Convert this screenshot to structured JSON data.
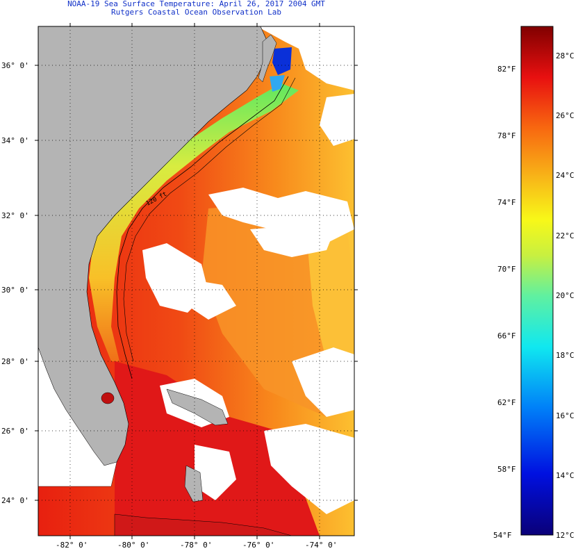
{
  "title_line1": "NOAA-19 Sea Surface Temperature:  April 26, 2017 2004 GMT",
  "title_line2": "Rutgers Coastal Ocean Observation Lab",
  "map": {
    "lat_labels": [
      "36° 0'",
      "34° 0'",
      "32° 0'",
      "30° 0'",
      "28° 0'",
      "26° 0'",
      "24° 0'"
    ],
    "lon_labels": [
      "-82° 0'",
      "-80° 0'",
      "-78° 0'",
      "-76° 0'",
      "-74° 0'"
    ],
    "isobath_label": "120 ft",
    "colors": {
      "land": "#b4b4b4",
      "cloud": "#ffffff",
      "ocean_warm": "#f03010",
      "ocean_mid": "#f8a020",
      "coastal_cool": "#e8e840",
      "cold_inlet": "#0a30d8"
    }
  },
  "colorbar": {
    "fahrenheit_labels": [
      "82°F",
      "78°F",
      "74°F",
      "70°F",
      "66°F",
      "62°F",
      "58°F",
      "54°F"
    ],
    "celsius_labels": [
      "28°C",
      "26°C",
      "24°C",
      "22°C",
      "20°C",
      "18°C",
      "16°C",
      "14°C",
      "12°C"
    ]
  }
}
